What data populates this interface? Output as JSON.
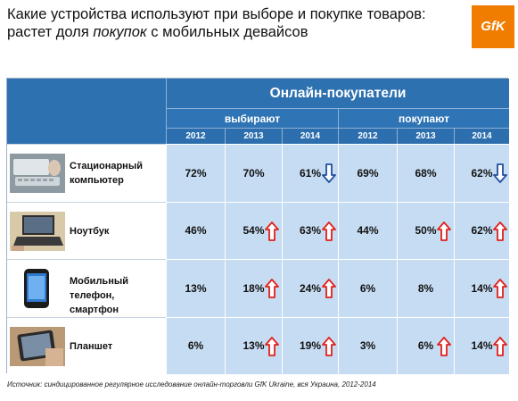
{
  "title": {
    "line1": "Какие устройства используют при выборе и покупке товаров:",
    "line2_prefix": "растет доля ",
    "line2_italic": "покупок",
    "line2_suffix": " с мобильных девайсов"
  },
  "logo": {
    "text": "GfK"
  },
  "chart_data": {
    "type": "table",
    "header_main": "Онлайн-покупатели",
    "groups": [
      "выбирают",
      "покупают"
    ],
    "years": [
      "2012",
      "2013",
      "2014",
      "2012",
      "2013",
      "2014"
    ],
    "rows": [
      {
        "device": "Стационарный компьютер",
        "icon": "desktop-computer-icon",
        "values": [
          "72%",
          "70%",
          "61%",
          "69%",
          "68%",
          "62%"
        ],
        "arrows": [
          "",
          "",
          "down",
          "",
          "",
          "down"
        ]
      },
      {
        "device": "Ноутбук",
        "icon": "laptop-icon",
        "values": [
          "46%",
          "54%",
          "63%",
          "44%",
          "50%",
          "62%"
        ],
        "arrows": [
          "",
          "up",
          "up",
          "",
          "up",
          "up"
        ]
      },
      {
        "device": "Мобильный телефон, смартфон",
        "icon": "smartphone-icon",
        "values": [
          "13%",
          "18%",
          "24%",
          "6%",
          "8%",
          "14%"
        ],
        "arrows": [
          "",
          "up",
          "up",
          "",
          "",
          "up"
        ]
      },
      {
        "device": "Планшет",
        "icon": "tablet-icon",
        "values": [
          "6%",
          "13%",
          "19%",
          "3%",
          "6%",
          "14%"
        ],
        "arrows": [
          "",
          "up",
          "up",
          "",
          "up",
          "up"
        ]
      }
    ],
    "colors": {
      "header": "#2e71b0",
      "cell": "#c6dcf2",
      "arrow_up": "#e0201b",
      "arrow_down": "#1f4f9c"
    }
  },
  "source": "Источник: синдицированное регулярное исследование онлайн-торговли GfK Ukraine, вся Украина, 2012-2014"
}
